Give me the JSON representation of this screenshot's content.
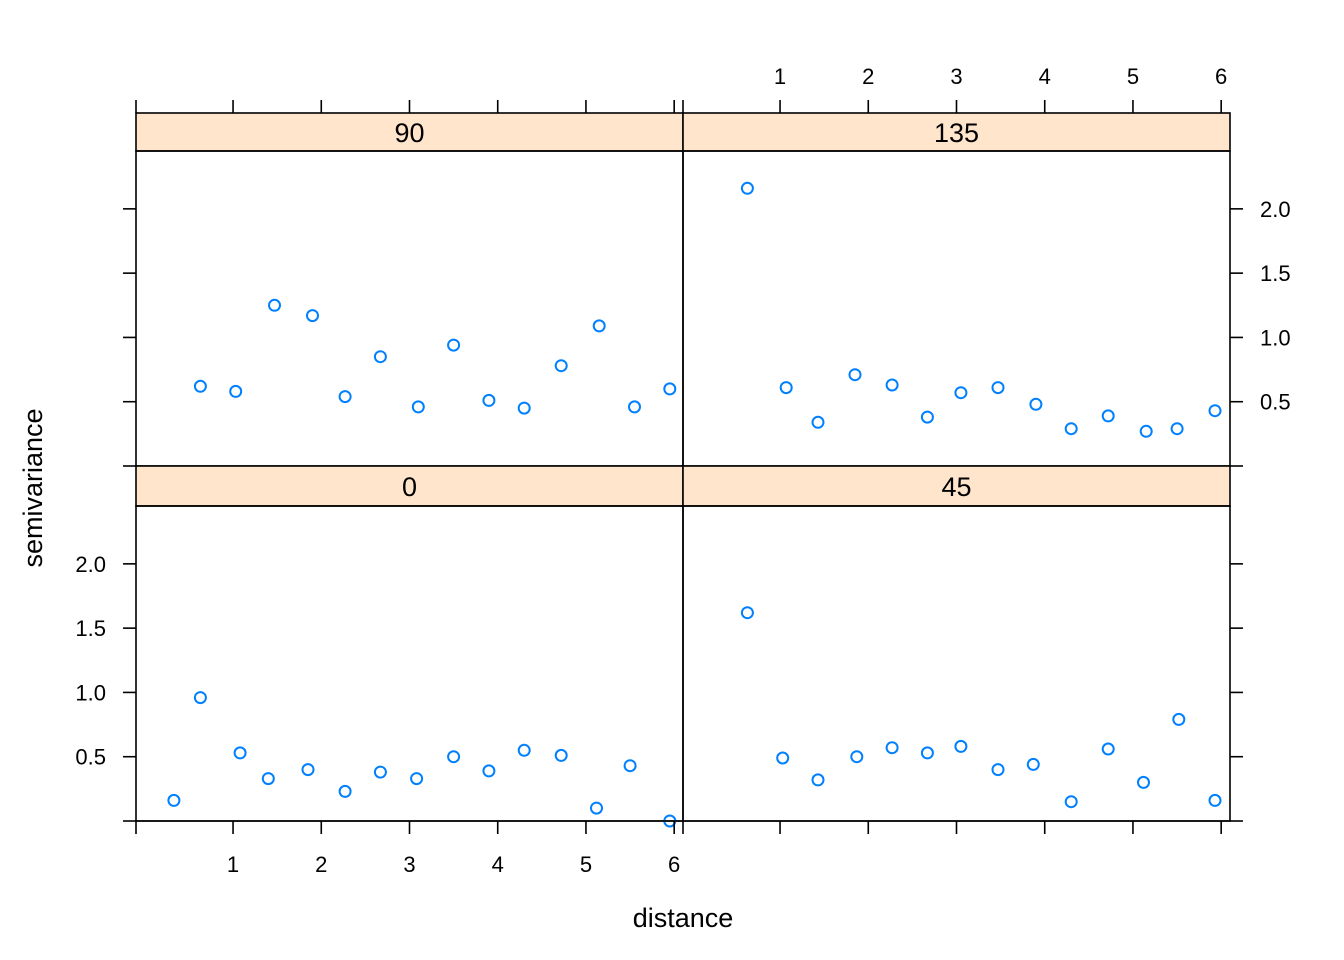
{
  "chart_data": {
    "type": "scatter",
    "xlabel": "distance",
    "ylabel": "semivariance",
    "xlim": [
      -0.1,
      6.1
    ],
    "ylim": [
      0,
      2.45
    ],
    "x_ticks": [
      1,
      2,
      3,
      4,
      5,
      6
    ],
    "y_ticks": [
      0.5,
      1.0,
      1.5,
      2.0
    ],
    "y_tick_labels": [
      "0.5",
      "1.0",
      "1.5",
      "2.0"
    ],
    "point_color": "#0080ff",
    "panels": [
      {
        "strip": "90",
        "x": [
          0.63,
          1.03,
          1.47,
          1.9,
          2.27,
          2.67,
          3.1,
          3.5,
          3.9,
          4.3,
          4.72,
          5.15,
          5.55,
          5.95
        ],
        "y": [
          0.62,
          0.58,
          1.25,
          1.17,
          0.54,
          0.85,
          0.46,
          0.94,
          0.51,
          0.45,
          0.78,
          1.09,
          0.46,
          0.6
        ]
      },
      {
        "strip": "135",
        "x": [
          0.63,
          1.07,
          1.43,
          1.85,
          2.27,
          2.67,
          3.05,
          3.47,
          3.9,
          4.3,
          4.72,
          5.15,
          5.5,
          5.93
        ],
        "y": [
          2.16,
          0.61,
          0.34,
          0.71,
          0.63,
          0.38,
          0.57,
          0.61,
          0.48,
          0.29,
          0.39,
          0.27,
          0.29,
          0.43
        ]
      },
      {
        "strip": "0",
        "x": [
          0.33,
          0.63,
          1.08,
          1.4,
          1.85,
          2.27,
          2.67,
          3.08,
          3.5,
          3.9,
          4.3,
          4.72,
          5.12,
          5.5,
          5.95
        ],
        "y": [
          0.16,
          0.96,
          0.53,
          0.33,
          0.4,
          0.23,
          0.38,
          0.33,
          0.5,
          0.39,
          0.55,
          0.51,
          0.1,
          0.43,
          0.0
        ]
      },
      {
        "strip": "45",
        "x": [
          0.63,
          1.03,
          1.43,
          1.87,
          2.27,
          2.67,
          3.05,
          3.47,
          3.87,
          4.3,
          4.72,
          5.12,
          5.52,
          5.93
        ],
        "y": [
          1.62,
          0.49,
          0.32,
          0.5,
          0.57,
          0.53,
          0.58,
          0.4,
          0.44,
          0.15,
          0.56,
          0.3,
          0.79,
          0.16
        ]
      }
    ]
  }
}
